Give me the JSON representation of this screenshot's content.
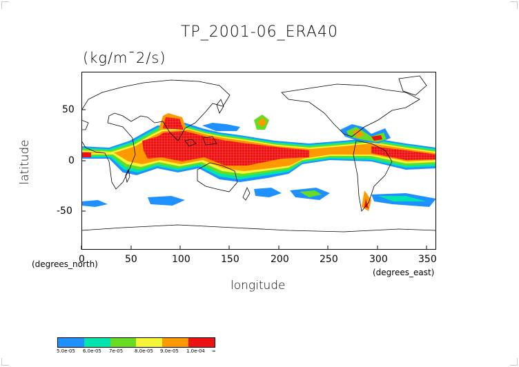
{
  "map": {
    "title": "TP_2001-06_ERA40",
    "units": "(kg/m¯2/s)",
    "xlabel": "longitude",
    "ylabel": "latitude",
    "x_unit_note": "(degrees_east)",
    "y_unit_note": "(degrees_north)",
    "x_ticks": [
      "0",
      "50",
      "100",
      "150",
      "200",
      "250",
      "300",
      "350"
    ],
    "y_ticks": [
      "50",
      "0",
      "-50"
    ],
    "x_range": [
      0,
      360
    ],
    "y_range": [
      -90,
      90
    ],
    "colorbar": {
      "colors": [
        "#1e90ff",
        "#00e5b0",
        "#66dd22",
        "#f5f53a",
        "#ff9900",
        "#ee1111"
      ],
      "labels": [
        "5.0e-05",
        "6.0e-05",
        "7e-05",
        "8.0e-05",
        "9.0e-05",
        "1.0e-04",
        "∞"
      ]
    }
  }
}
